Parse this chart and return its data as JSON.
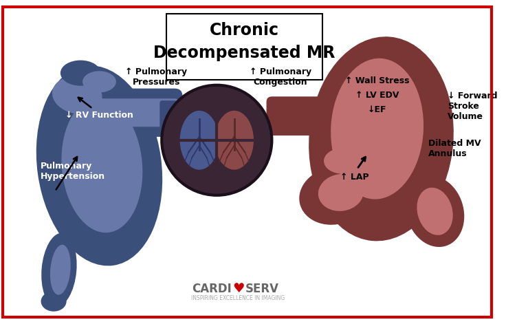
{
  "title_line1": "Chronic",
  "title_line2": "Decompensated MR",
  "bg_color": "#ffffff",
  "border_color": "#cc0000",
  "rh_color": "#3a4f7a",
  "rh_inner": "#6878a8",
  "lh_color": "#7a3535",
  "lh_inner": "#c07070",
  "lung_ring_color": "#3a2535",
  "lung_left_color": "#4a5a90",
  "lung_right_color": "#8a4848",
  "lung_branch_left": "#2a3565",
  "lung_branch_right": "#5a2828",
  "conn_left_color": "#3a4a7a",
  "conn_right_color": "#7a3535",
  "cardioserv_text_color": "#666666",
  "cardioserv_heart_color": "#cc0000",
  "cardioserv_sub_color": "#aaaaaa",
  "labels": {
    "pulmonary_hypertension": "Pulmonary\nHypertension",
    "rv_function": "↓ RV Function",
    "pulmonary_pressures": "↑ Pulmonary\nPressures",
    "pulmonary_congestion": "↑ Pulmonary\nCongestion",
    "forward_stroke": "↓ Forward\nStroke\nVolume",
    "dilated_mv": "Dilated MV\nAnnulus",
    "lap": "↑ LAP",
    "wall_stress": "↑ Wall Stress\n↑ LV EDV\n↓EF"
  },
  "cardioserv_sub": "INSPIRING EXCELLENCE IN IMAGING"
}
